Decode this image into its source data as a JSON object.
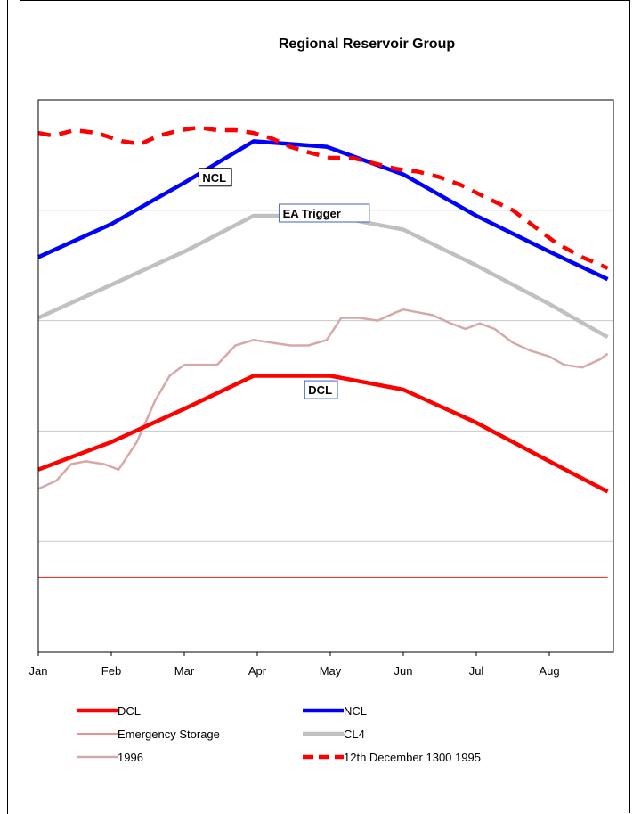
{
  "chart_data": {
    "type": "line",
    "title": "Regional Reservoir Group",
    "xlabel": "",
    "ylabel": "",
    "x_ticks": [
      "Jan",
      "Feb",
      "Mar",
      "Apr",
      "May",
      "Jun",
      "Jul",
      "Aug"
    ],
    "x_range": [
      0,
      7.8
    ],
    "y_range": [
      0,
      100
    ],
    "grid": "horizontal",
    "series": [
      {
        "name": "DCL",
        "color": "#ff0000",
        "style": "solid-thick",
        "points": [
          [
            0,
            33
          ],
          [
            1,
            38
          ],
          [
            2,
            44
          ],
          [
            2.95,
            50
          ],
          [
            4,
            50
          ],
          [
            5,
            47.5
          ],
          [
            6,
            41.5
          ],
          [
            7,
            34.5
          ],
          [
            7.8,
            29
          ]
        ]
      },
      {
        "name": "NCL",
        "color": "#0000ff",
        "style": "solid-thick",
        "points": [
          [
            0,
            71.5
          ],
          [
            1,
            77.5
          ],
          [
            2,
            85
          ],
          [
            2.95,
            92.5
          ],
          [
            3.95,
            91.5
          ],
          [
            5,
            86.5
          ],
          [
            6,
            79
          ],
          [
            7,
            72.5
          ],
          [
            7.8,
            67.5
          ]
        ]
      },
      {
        "name": "Emergency Storage",
        "color": "#dd2222",
        "style": "solid-thin",
        "points": [
          [
            0,
            13.5
          ],
          [
            7.8,
            13.5
          ]
        ]
      },
      {
        "name": "CL4",
        "color": "#c0c0c0",
        "style": "solid-thick",
        "points": [
          [
            0,
            60.5
          ],
          [
            1,
            66.5
          ],
          [
            2,
            72.5
          ],
          [
            2.95,
            79
          ],
          [
            4,
            79
          ],
          [
            5,
            76.5
          ],
          [
            6,
            70
          ],
          [
            7,
            63
          ],
          [
            7.8,
            57
          ]
        ]
      },
      {
        "name": "1996",
        "color": "#d8a8a8",
        "style": "solid-medium",
        "points": [
          [
            0,
            29.5
          ],
          [
            0.25,
            31
          ],
          [
            0.45,
            34
          ],
          [
            0.65,
            34.5
          ],
          [
            0.9,
            34
          ],
          [
            1.1,
            33
          ],
          [
            1.35,
            38
          ],
          [
            1.6,
            45.5
          ],
          [
            1.8,
            50
          ],
          [
            2,
            52
          ],
          [
            2.2,
            52
          ],
          [
            2.45,
            52
          ],
          [
            2.7,
            55.5
          ],
          [
            2.95,
            56.5
          ],
          [
            3.2,
            56
          ],
          [
            3.45,
            55.5
          ],
          [
            3.7,
            55.5
          ],
          [
            3.95,
            56.5
          ],
          [
            4.15,
            60.5
          ],
          [
            4.4,
            60.5
          ],
          [
            4.65,
            60
          ],
          [
            4.9,
            61.5
          ],
          [
            5,
            62
          ],
          [
            5.2,
            61.5
          ],
          [
            5.4,
            61
          ],
          [
            5.65,
            59.5
          ],
          [
            5.85,
            58.5
          ],
          [
            6.05,
            59.5
          ],
          [
            6.25,
            58.5
          ],
          [
            6.5,
            56
          ],
          [
            6.75,
            54.5
          ],
          [
            7,
            53.5
          ],
          [
            7.2,
            52
          ],
          [
            7.45,
            51.5
          ],
          [
            7.7,
            53
          ],
          [
            7.8,
            54
          ]
        ]
      },
      {
        "name": "12th December 1300 1995",
        "color": "#ff0000",
        "style": "dashed-thick",
        "points": [
          [
            0,
            94
          ],
          [
            0.2,
            93.5
          ],
          [
            0.5,
            94.5
          ],
          [
            0.8,
            94
          ],
          [
            1.15,
            92.5
          ],
          [
            1.4,
            92
          ],
          [
            1.65,
            93.5
          ],
          [
            1.95,
            94.5
          ],
          [
            2.2,
            95
          ],
          [
            2.45,
            94.5
          ],
          [
            2.7,
            94.5
          ],
          [
            2.95,
            94
          ],
          [
            3.2,
            93
          ],
          [
            3.45,
            91.5
          ],
          [
            3.7,
            90.5
          ],
          [
            4,
            89.5
          ],
          [
            4.3,
            89.5
          ],
          [
            4.6,
            88.5
          ],
          [
            4.9,
            87.5
          ],
          [
            5.2,
            87
          ],
          [
            5.5,
            86
          ],
          [
            5.8,
            84.5
          ],
          [
            6.1,
            82.5
          ],
          [
            6.5,
            80
          ],
          [
            6.8,
            77
          ],
          [
            7.1,
            74
          ],
          [
            7.45,
            71.5
          ],
          [
            7.8,
            69.5
          ]
        ]
      }
    ],
    "annotations": [
      {
        "text": "NCL",
        "x": 2.2,
        "y": 85.5,
        "border": "#000000"
      },
      {
        "text": "EA Trigger",
        "x": 3.3,
        "y": 79,
        "border": "#4060c0"
      },
      {
        "text": "DCL",
        "x": 3.65,
        "y": 47,
        "border": "#4060c0"
      }
    ],
    "legend_position": "bottom",
    "legend_columns": 2
  }
}
